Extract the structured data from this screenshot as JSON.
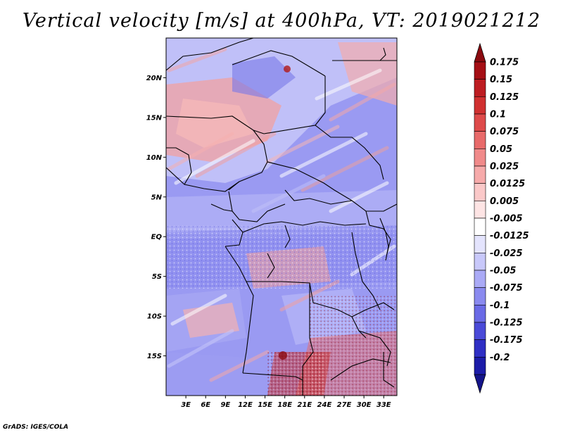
{
  "title": "Vertical velocity [m/s] at 400hPa, VT: 2019021212",
  "footer": "GrADS: IGES/COLA",
  "map": {
    "lon_range": [
      0,
      35
    ],
    "lat_range": [
      -20,
      25
    ],
    "lat_ticks": [
      {
        "value": 20,
        "label": "20N"
      },
      {
        "value": 15,
        "label": "15N"
      },
      {
        "value": 10,
        "label": "10N"
      },
      {
        "value": 5,
        "label": "5N"
      },
      {
        "value": 0,
        "label": "EQ"
      },
      {
        "value": -5,
        "label": "5S"
      },
      {
        "value": -10,
        "label": "10S"
      },
      {
        "value": -15,
        "label": "15S"
      }
    ],
    "lon_ticks": [
      {
        "value": 3,
        "label": "3E"
      },
      {
        "value": 6,
        "label": "6E"
      },
      {
        "value": 9,
        "label": "9E"
      },
      {
        "value": 12,
        "label": "12E"
      },
      {
        "value": 15,
        "label": "15E"
      },
      {
        "value": 18,
        "label": "18E"
      },
      {
        "value": 21,
        "label": "21E"
      },
      {
        "value": 24,
        "label": "24E"
      },
      {
        "value": 27,
        "label": "27E"
      },
      {
        "value": 30,
        "label": "30E"
      },
      {
        "value": 33,
        "label": "33E"
      }
    ]
  },
  "colorbar": {
    "levels": [
      {
        "label": "0.175",
        "color": "#a50f15"
      },
      {
        "label": "0.15",
        "color": "#bd1d22"
      },
      {
        "label": "0.125",
        "color": "#d03030"
      },
      {
        "label": "0.1",
        "color": "#de4a4a"
      },
      {
        "label": "0.075",
        "color": "#e86a6a"
      },
      {
        "label": "0.05",
        "color": "#f08a8a"
      },
      {
        "label": "0.025",
        "color": "#f6aaaa"
      },
      {
        "label": "0.0125",
        "color": "#fac8c8"
      },
      {
        "label": "0.005",
        "color": "#fde4e4"
      },
      {
        "label": "-0.005",
        "color": "#ffffff"
      },
      {
        "label": "-0.0125",
        "color": "#e4e4fd"
      },
      {
        "label": "-0.025",
        "color": "#c8c8fa"
      },
      {
        "label": "-0.05",
        "color": "#aaaaf6"
      },
      {
        "label": "-0.075",
        "color": "#8a8aef"
      },
      {
        "label": "-0.1",
        "color": "#6a6ae6"
      },
      {
        "label": "-0.125",
        "color": "#4a4ad8"
      },
      {
        "label": "-0.175",
        "color": "#2f2fc4"
      },
      {
        "label": "-0.2",
        "color": "#1c1ca8"
      }
    ],
    "top_triangle_color": "#8b0a10",
    "bottom_triangle_color": "#14148a"
  },
  "colors": {
    "field_blue": "#8c8cf0",
    "field_red": "#ee8c8c",
    "field_light": "#d8d8fa",
    "border": "#000000"
  }
}
